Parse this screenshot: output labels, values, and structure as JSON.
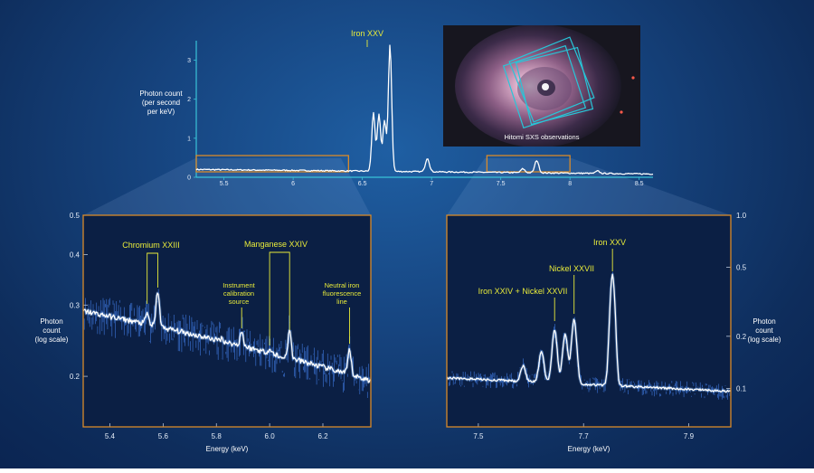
{
  "colors": {
    "annotation": "#e8eb3a",
    "frame": "#d98a2a",
    "top_axis": "#39c3d8",
    "background": "#16447f"
  },
  "inset": {
    "caption": "Hitomi SXS observations"
  },
  "chart_data": [
    {
      "id": "overview",
      "type": "line",
      "ylabel_lines": [
        "Photon count",
        "(per second",
        "per keV)"
      ],
      "xlim": [
        5.3,
        8.6
      ],
      "ylim": [
        0,
        3.5
      ],
      "x_ticks": [
        "5.5",
        "6",
        "6.5",
        "7",
        "7.5",
        "8",
        "8.5"
      ],
      "y_ticks": [
        "0",
        "1",
        "2",
        "3"
      ],
      "annotations": [
        {
          "label": "Iron XXV",
          "x": 6.7
        }
      ],
      "highlight_ranges": [
        [
          5.3,
          6.4
        ],
        [
          7.4,
          8.0
        ]
      ],
      "peaks": [
        {
          "x": 6.58,
          "y": 1.5
        },
        {
          "x": 6.62,
          "y": 1.45
        },
        {
          "x": 6.66,
          "y": 1.3
        },
        {
          "x": 6.7,
          "y": 3.25
        },
        {
          "x": 6.97,
          "y": 0.35
        },
        {
          "x": 7.66,
          "y": 0.1
        },
        {
          "x": 7.76,
          "y": 0.32
        },
        {
          "x": 8.2,
          "y": 0.06
        }
      ]
    },
    {
      "id": "left-detail",
      "type": "line",
      "xlabel": "Energy (keV)",
      "ylabel_lines": [
        "Photon",
        "count",
        "(log scale)"
      ],
      "yscale": "log",
      "xlim": [
        5.3,
        6.38
      ],
      "ylim": [
        0.15,
        0.5
      ],
      "x_ticks": [
        "5.4",
        "5.6",
        "5.8",
        "6.0",
        "6.2"
      ],
      "y_ticks": [
        "0.2",
        "0.3",
        "0.4",
        "0.5"
      ],
      "continuum": {
        "x": [
          5.3,
          6.38
        ],
        "y": [
          0.29,
          0.195
        ]
      },
      "peaks": [
        {
          "x": 5.54,
          "y": 0.286
        },
        {
          "x": 5.58,
          "y": 0.325
        },
        {
          "x": 5.82,
          "y": 0.248
        },
        {
          "x": 5.895,
          "y": 0.258
        },
        {
          "x": 6.0,
          "y": 0.233
        },
        {
          "x": 6.04,
          "y": 0.222
        },
        {
          "x": 6.075,
          "y": 0.258
        },
        {
          "x": 6.3,
          "y": 0.232
        }
      ],
      "annotations": [
        {
          "label": "Chromium XXIII",
          "x": [
            5.54,
            5.58
          ]
        },
        {
          "label": "Instrument calibration source",
          "label_lines": [
            "Instrument",
            "calibration",
            "source"
          ],
          "x": 5.895
        },
        {
          "label": "Manganese XXIV",
          "x": [
            6.0,
            6.075
          ]
        },
        {
          "label": "Neutral iron fluorescence line",
          "label_lines": [
            "Neutral iron",
            "fluorescence",
            "line"
          ],
          "x": 6.3
        }
      ]
    },
    {
      "id": "right-detail",
      "type": "line",
      "xlabel": "Energy (keV)",
      "ylabel_lines": [
        "Photon",
        "count",
        "(log scale)"
      ],
      "yscale": "log",
      "xlim": [
        7.44,
        7.98
      ],
      "ylim": [
        0.06,
        1.0
      ],
      "x_ticks": [
        "7.5",
        "7.7",
        "7.9"
      ],
      "y_ticks": [
        "0.1",
        "0.2",
        "0.5",
        "1.0"
      ],
      "continuum": {
        "x": [
          7.44,
          7.98
        ],
        "y": [
          0.115,
          0.096
        ]
      },
      "peaks": [
        {
          "x": 7.585,
          "y": 0.135
        },
        {
          "x": 7.62,
          "y": 0.162
        },
        {
          "x": 7.645,
          "y": 0.215
        },
        {
          "x": 7.665,
          "y": 0.205
        },
        {
          "x": 7.682,
          "y": 0.248
        },
        {
          "x": 7.755,
          "y": 0.45
        }
      ],
      "annotations": [
        {
          "label": "Iron XXIV + Nickel XXVII",
          "x": 7.645
        },
        {
          "label": "Nickel XXVII",
          "x": 7.682
        },
        {
          "label": "Iron XXV",
          "x": 7.755
        }
      ]
    }
  ]
}
